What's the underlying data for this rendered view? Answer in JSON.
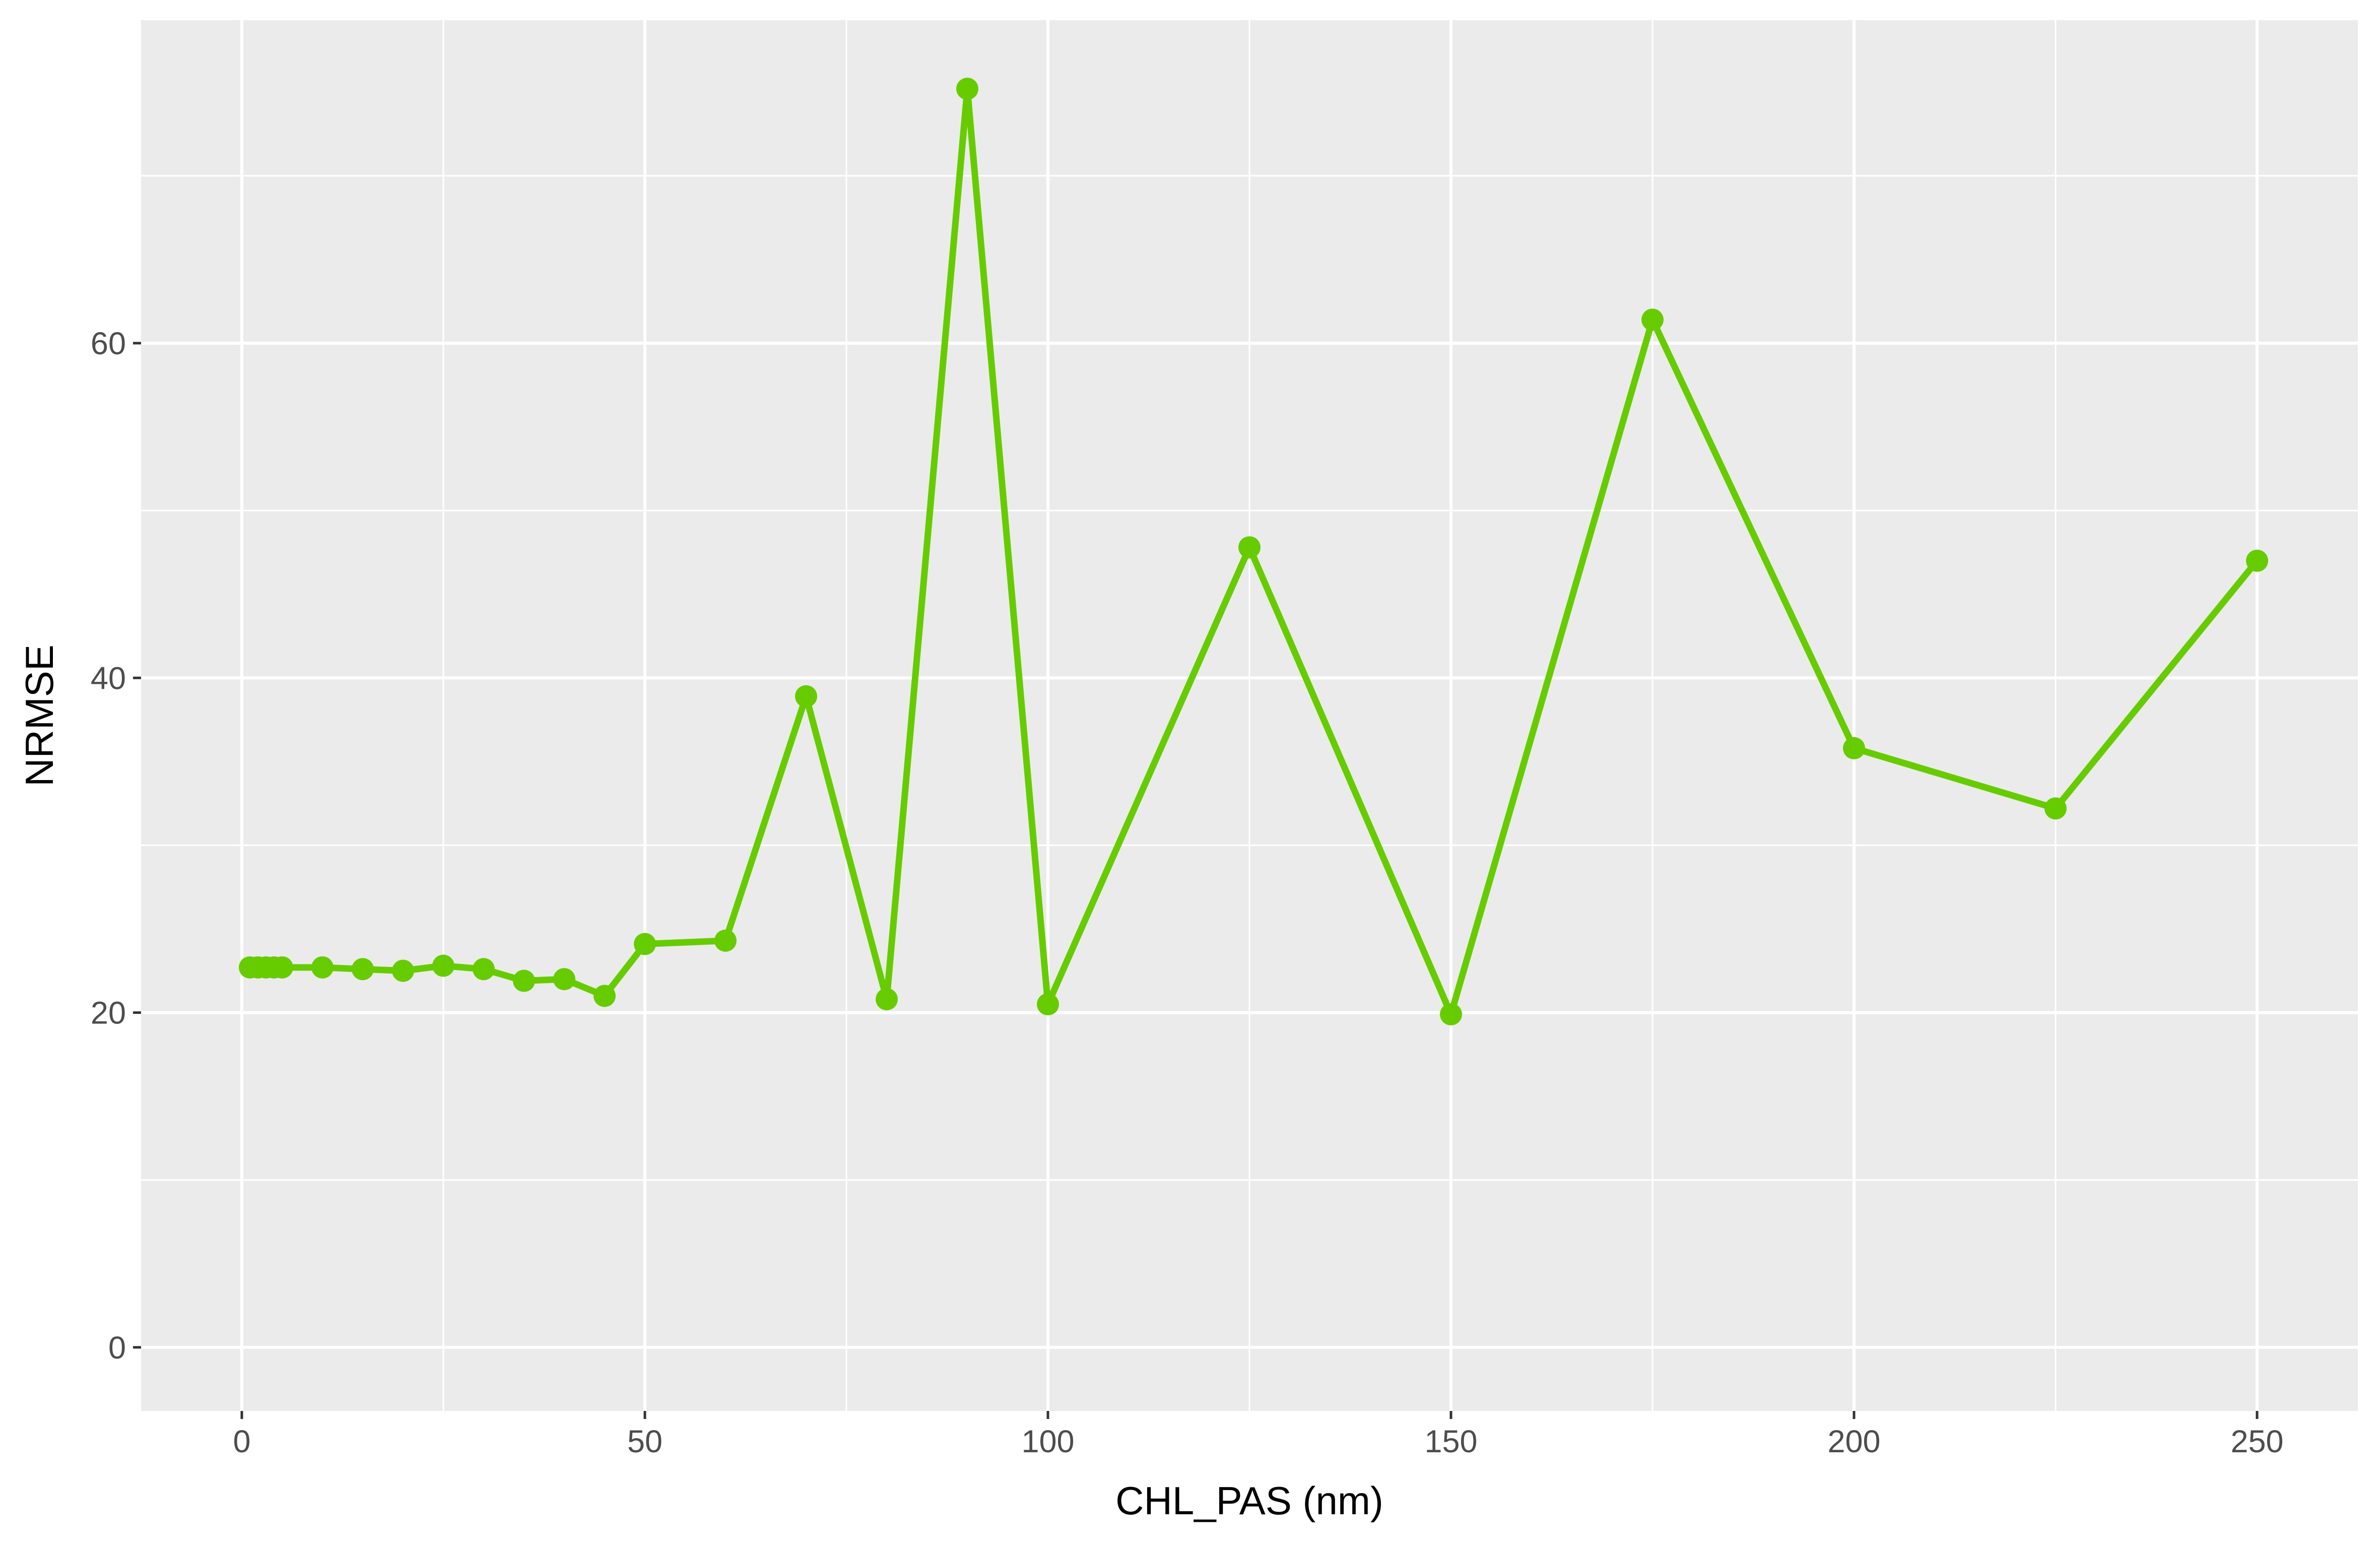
{
  "chart_data": {
    "type": "line",
    "title": "",
    "xlabel": "CHL_PAS (nm)",
    "ylabel": "NRMSE",
    "xlim": [
      -12.5,
      262.5
    ],
    "ylim": [
      -3.8,
      79.3
    ],
    "x_ticks": [
      0,
      50,
      100,
      150,
      200,
      250
    ],
    "y_ticks": [
      0,
      20,
      40,
      60
    ],
    "x_tick_labels": [
      "0",
      "50",
      "100",
      "150",
      "200",
      "250"
    ],
    "y_tick_labels": [
      "0",
      "20",
      "40",
      "60"
    ],
    "grid": true,
    "legend": "none",
    "background_color": "#EBEBEB",
    "grid_color": "#FFFFFF",
    "series": [
      {
        "color": "#66CC00",
        "x": [
          1,
          2,
          3,
          4,
          5,
          10,
          15,
          20,
          25,
          30,
          35,
          40,
          45,
          50,
          60,
          70,
          80,
          90,
          100,
          125,
          150,
          175,
          200,
          225,
          250
        ],
        "y": [
          22.7,
          22.7,
          22.7,
          22.7,
          22.7,
          22.7,
          22.6,
          22.5,
          22.8,
          22.6,
          21.9,
          22.0,
          21.0,
          24.1,
          24.3,
          38.9,
          20.8,
          75.2,
          20.5,
          47.8,
          19.9,
          61.4,
          35.8,
          32.2,
          47.0
        ]
      }
    ]
  }
}
